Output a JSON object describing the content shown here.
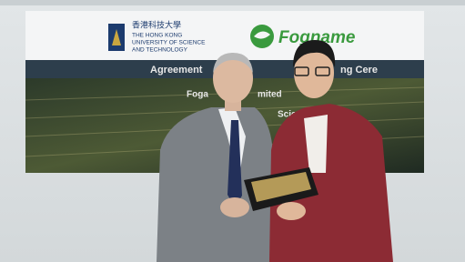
{
  "banner": {
    "logo_chinese": "香港科技大學",
    "logo_lines": [
      "THE HONG KONG",
      "UNIVERSITY OF SCIENCE",
      "AND TECHNOLOGY"
    ],
    "brand": "Fogname",
    "headline": [
      "Agreement",
      "ng Cere"
    ],
    "subtext": [
      "Foga",
      "mited",
      "Scie"
    ]
  }
}
